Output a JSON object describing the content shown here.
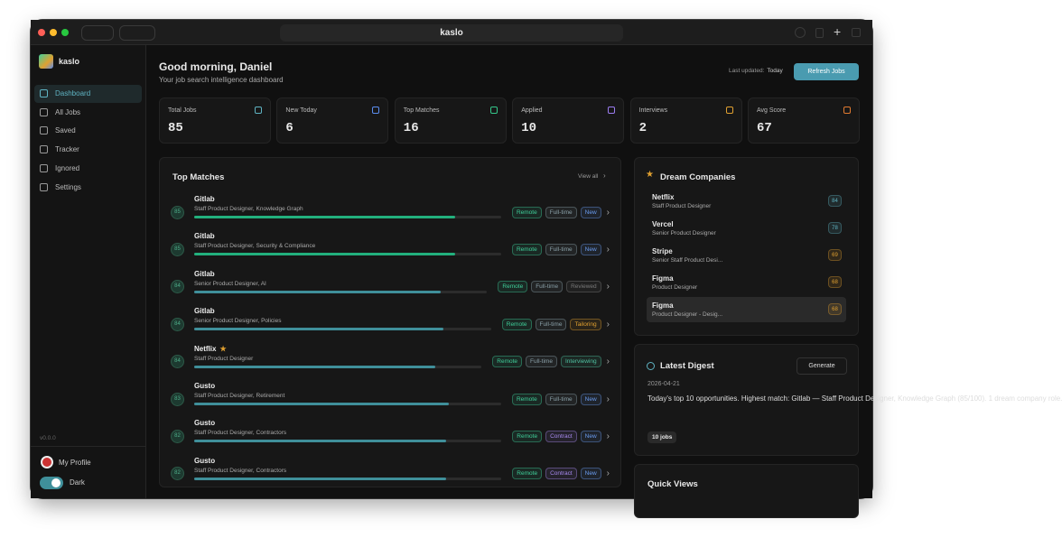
{
  "browser": {
    "url": "kaslo"
  },
  "sidebar": {
    "brand": "kaslo",
    "nav": [
      "Dashboard",
      "All Jobs",
      "Saved",
      "Tracker",
      "Ignored",
      "Settings"
    ],
    "active": 0,
    "version": "v0.0.0",
    "profile": "My Profile",
    "theme": "Dark"
  },
  "header": {
    "greeting": "Good morning, Daniel",
    "subtitle": "Your job search intelligence dashboard",
    "last_updated_label": "Last updated:",
    "last_updated": "Today",
    "button": "Refresh Jobs"
  },
  "stats": [
    {
      "label": "Total Jobs",
      "value": "85",
      "icon_color": "#5fb3c2"
    },
    {
      "label": "New Today",
      "value": "6",
      "icon_color": "#5b8def"
    },
    {
      "label": "Top Matches",
      "value": "16",
      "icon_color": "#34c78a"
    },
    {
      "label": "Applied",
      "value": "10",
      "icon_color": "#9b7cf0"
    },
    {
      "label": "Interviews",
      "value": "2",
      "icon_color": "#e0a030"
    },
    {
      "label": "Avg Score",
      "value": "67",
      "icon_color": "#e07a30"
    }
  ],
  "top_matches": {
    "title": "Top Matches",
    "view_all": "View all",
    "items": [
      {
        "score": 85,
        "company": "Gitlab",
        "role": "Staff Product Designer, Knowledge Graph",
        "color": "#22b07d",
        "tags": [
          {
            "label": "Remote",
            "color": "#3fcf9a"
          },
          {
            "label": "Full-time",
            "color": "#8aa0a8"
          },
          {
            "label": "New",
            "color": "#6a9cf0"
          }
        ]
      },
      {
        "score": 85,
        "company": "Gitlab",
        "role": "Staff Product Designer, Security & Compliance",
        "color": "#22b07d",
        "tags": [
          {
            "label": "Remote",
            "color": "#3fcf9a"
          },
          {
            "label": "Full-time",
            "color": "#8aa0a8"
          },
          {
            "label": "New",
            "color": "#6a9cf0"
          }
        ]
      },
      {
        "score": 84,
        "company": "Gitlab",
        "role": "Senior Product Designer, AI",
        "color": "#3f8f9a",
        "tags": [
          {
            "label": "Remote",
            "color": "#3fcf9a"
          },
          {
            "label": "Full-time",
            "color": "#8aa0a8"
          },
          {
            "label": "Reviewed",
            "color": "#7a7a7a"
          }
        ]
      },
      {
        "score": 84,
        "company": "Gitlab",
        "role": "Senior Product Designer, Policies",
        "color": "#3f8f9a",
        "tags": [
          {
            "label": "Remote",
            "color": "#3fcf9a"
          },
          {
            "label": "Full-time",
            "color": "#8aa0a8"
          },
          {
            "label": "Tailoring",
            "color": "#e0a030"
          }
        ]
      },
      {
        "score": 84,
        "company": "Netflix",
        "starred": true,
        "role": "Staff Product Designer",
        "color": "#3f8f9a",
        "tags": [
          {
            "label": "Remote",
            "color": "#3fcf9a"
          },
          {
            "label": "Full-time",
            "color": "#8aa0a8"
          },
          {
            "label": "Interviewing",
            "color": "#4fc0a0"
          }
        ]
      },
      {
        "score": 83,
        "company": "Gusto",
        "role": "Staff Product Designer, Retirement",
        "color": "#3f8f9a",
        "tags": [
          {
            "label": "Remote",
            "color": "#3fcf9a"
          },
          {
            "label": "Full-time",
            "color": "#8aa0a8"
          },
          {
            "label": "New",
            "color": "#6a9cf0"
          }
        ]
      },
      {
        "score": 82,
        "company": "Gusto",
        "role": "Staff Product Designer, Contractors",
        "color": "#3f8f9a",
        "tags": [
          {
            "label": "Remote",
            "color": "#3fcf9a"
          },
          {
            "label": "Contract",
            "color": "#a88af0"
          },
          {
            "label": "New",
            "color": "#6a9cf0"
          }
        ]
      },
      {
        "score": 82,
        "company": "Gusto",
        "role": "Staff Product Designer, Contractors",
        "color": "#3f8f9a",
        "tags": [
          {
            "label": "Remote",
            "color": "#3fcf9a"
          },
          {
            "label": "Contract",
            "color": "#a88af0"
          },
          {
            "label": "New",
            "color": "#6a9cf0"
          }
        ]
      }
    ]
  },
  "dream_companies": {
    "title": "Dream Companies",
    "items": [
      {
        "company": "Netflix",
        "role": "Staff Product Designer",
        "score": "84",
        "color": "#5fb3c2"
      },
      {
        "company": "Vercel",
        "role": "Senior Product Designer",
        "score": "78",
        "color": "#5fb3c2"
      },
      {
        "company": "Stripe",
        "role": "Senior Staff Product Desi...",
        "score": "69",
        "color": "#e0a030"
      },
      {
        "company": "Figma",
        "role": "Product Designer",
        "score": "68",
        "color": "#e0a030"
      },
      {
        "company": "Figma",
        "role": "Product Designer - Desig...",
        "score": "68",
        "color": "#e0a030",
        "highlighted": true
      }
    ]
  },
  "digest": {
    "title": "Latest Digest",
    "button": "Generate",
    "date": "2026-04-21",
    "text": "Today's top 10 opportunities. Highest match: Gitlab — Staff Product Designer, Knowledge Graph (85/100). 1 dream company role.",
    "badge": "10 jobs"
  },
  "quick_views": {
    "title": "Quick Views"
  }
}
